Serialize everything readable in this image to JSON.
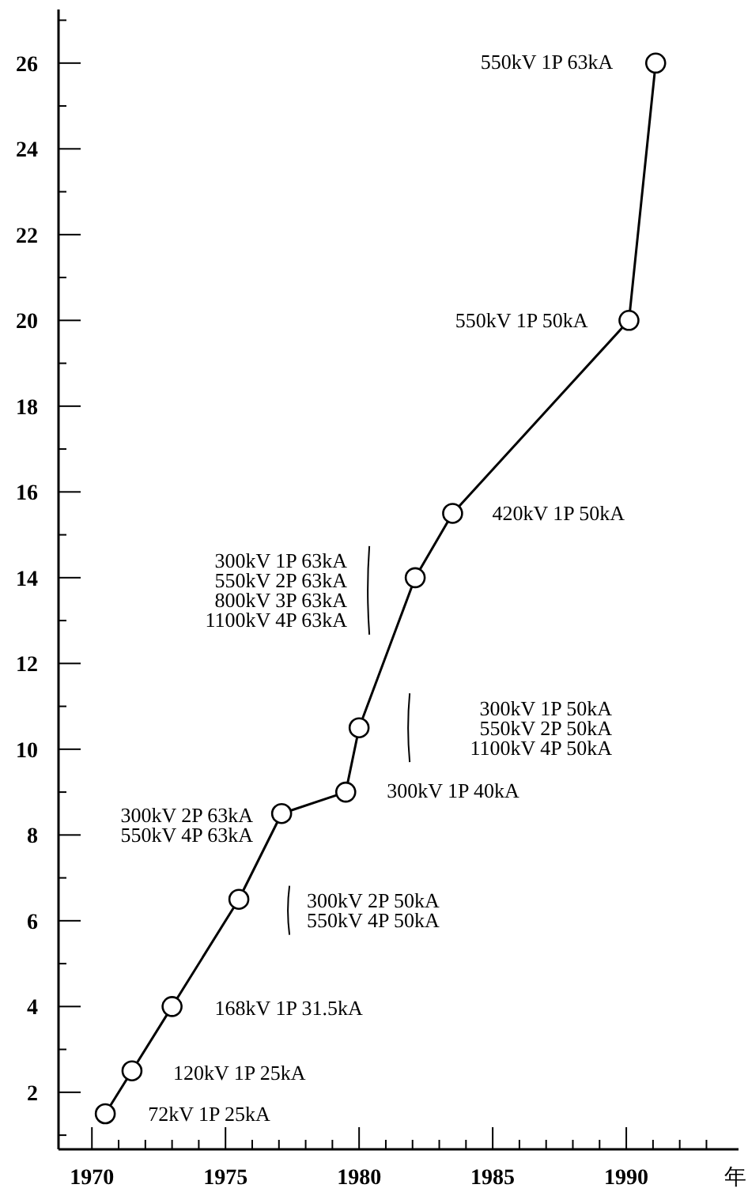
{
  "chart_data": {
    "type": "line",
    "xlabel": "年",
    "x": [
      1970.5,
      1971.5,
      1973,
      1975.5,
      1977.1,
      1979.5,
      1980,
      1982.1,
      1983.5,
      1990.1,
      1991.1
    ],
    "series": [
      {
        "color": "#000000",
        "values": [
          1.5,
          2.5,
          4,
          6.5,
          8.5,
          9,
          10.5,
          14,
          15.5,
          20,
          26
        ]
      }
    ],
    "marker": "circle",
    "line_style": "solid",
    "grid": false,
    "xlim": [
      1968.75,
      1994.2
    ],
    "ylim": [
      0.67,
      27.25
    ],
    "xticks": [
      1970,
      {
        "value": 1971,
        "label": null
      },
      {
        "value": 1972,
        "label": null
      },
      {
        "value": 1973,
        "label": null
      },
      {
        "value": 1974,
        "label": null
      },
      1975,
      {
        "value": 1976,
        "label": null
      },
      {
        "value": 1977,
        "label": null
      },
      {
        "value": 1978,
        "label": null
      },
      {
        "value": 1979,
        "label": null
      },
      1980,
      {
        "value": 1981,
        "label": null
      },
      {
        "value": 1982,
        "label": null
      },
      {
        "value": 1983,
        "label": null
      },
      {
        "value": 1984,
        "label": null
      },
      1985,
      {
        "value": 1986,
        "label": null
      },
      {
        "value": 1987,
        "label": null
      },
      {
        "value": 1988,
        "label": null
      },
      {
        "value": 1989,
        "label": null
      },
      1990,
      {
        "value": 1991,
        "label": null
      },
      {
        "value": 1992,
        "label": null
      },
      {
        "value": 1993,
        "label": null
      }
    ],
    "yticks": [
      {
        "value": 1,
        "label": null
      },
      2,
      {
        "value": 3,
        "label": null
      },
      4,
      {
        "value": 5,
        "label": null
      },
      6,
      {
        "value": 7,
        "label": null
      },
      8,
      {
        "value": 9,
        "label": null
      },
      10,
      {
        "value": 11,
        "label": null
      },
      12,
      {
        "value": 13,
        "label": null
      },
      14,
      {
        "value": 15,
        "label": null
      },
      16,
      {
        "value": 17,
        "label": null
      },
      18,
      {
        "value": 19,
        "label": null
      },
      20,
      {
        "value": 21,
        "label": null
      },
      22,
      {
        "value": 23,
        "label": null
      },
      24,
      {
        "value": 25,
        "label": null
      },
      26,
      {
        "value": 27,
        "label": null
      }
    ],
    "annotations": [
      "72kV 1P 25kA",
      "120kV 1P 25kA",
      "168kV 1P 31.5kA",
      "300kV 2P 50kA\n550kV 4P 50kA",
      "300kV 2P 63kA\n550kV 4P 63kA",
      "300kV 1P 40kA",
      "300kV 1P 50kA\n550kV 2P 50kA\n1100kV 4P 50kA",
      "300kV 1P 63kA\n550kV 2P 63kA\n800kV 3P 63kA\n1100kV 4P 63kA",
      "420kV 1P 50kA",
      "550kV 1P 50kA",
      "550kV 1P 63kA"
    ]
  }
}
